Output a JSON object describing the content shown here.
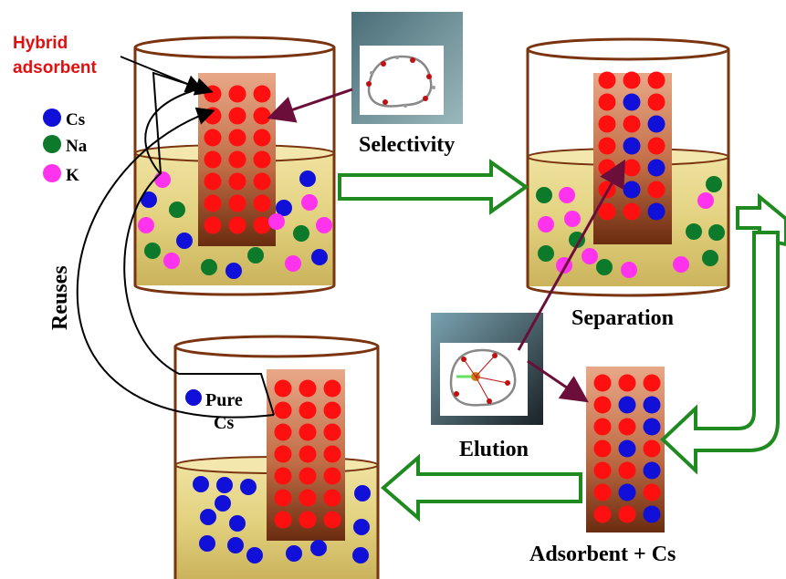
{
  "labels": {
    "hybrid_line1": "Hybrid",
    "hybrid_line2": "adsorbent",
    "legend_cs": "Cs",
    "legend_na": "Na",
    "legend_k": "K",
    "selectivity": "Selectivity",
    "separation": "Separation",
    "elution": "Elution",
    "adsorbent_cs": "Adsorbent + Cs",
    "reuses": "Reuses",
    "pure_line1": "Pure",
    "pure_line2": "Cs"
  },
  "colors": {
    "cs": "#1010d8",
    "na": "#0c7a2a",
    "k": "#ff33ee",
    "adsorbent_dot": "#ff1010",
    "solution": "#e8d98a",
    "beaker_stroke": "#7a3510",
    "flow_arrow": "#1f8a1f",
    "pointer_arrow": "#6b0f3a",
    "hybrid_label": "#e01010"
  },
  "icons": {
    "molecule_top": "crown-ether-molecule-image",
    "molecule_mid": "cs-crown-ether-complex-image"
  }
}
